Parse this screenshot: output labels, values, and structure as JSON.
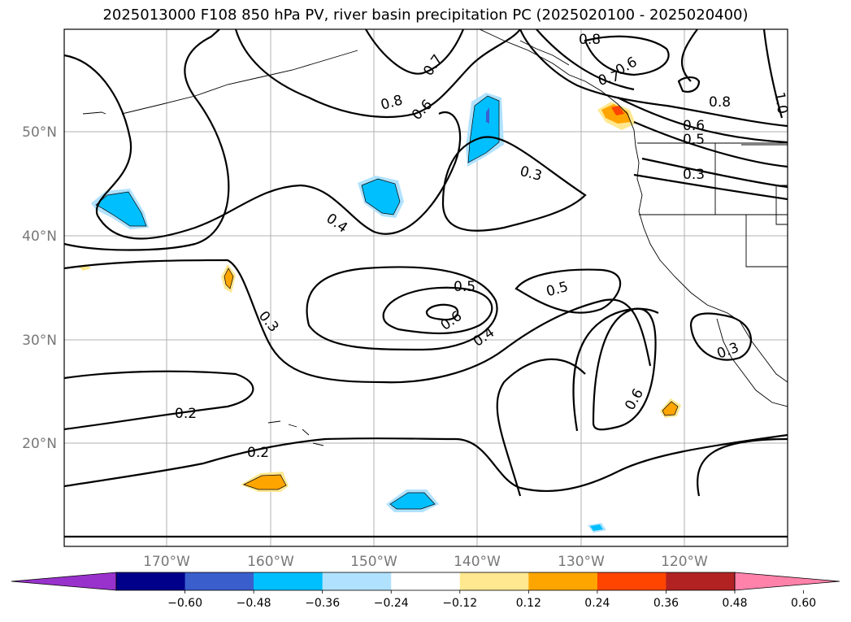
{
  "title": "2025013000 F108 850 hPa PV, river basin precipitation PC (2025020100 - 2025020400)",
  "lat_labels": [
    "50°N",
    "40°N",
    "30°N",
    "20°N"
  ],
  "lon_labels": [
    "170°W",
    "160°W",
    "150°W",
    "140°W",
    "130°W",
    "120°W"
  ],
  "contour_labels": [
    "0.8",
    "0.7",
    "0.6",
    "0.8",
    "0.7",
    "0.6",
    "0.8",
    "1.0",
    "0.6",
    "0.5",
    "0.3",
    "0.3",
    "0.4",
    "0.5",
    "0.5",
    "0.6",
    "0.4",
    "0.3",
    "0.6",
    "0.3",
    "0.2",
    "0.2"
  ],
  "colorbar": {
    "ticks": [
      "−0.60",
      "−0.48",
      "−0.36",
      "−0.24",
      "−0.12",
      "0.12",
      "0.24",
      "0.36",
      "0.48",
      "0.60"
    ],
    "colors": [
      "#9932cc",
      "#00008b",
      "#3a5fcd",
      "#00bfff",
      "#b0e2ff",
      "#ffffff",
      "#ffe88f",
      "#ffa500",
      "#ff4500",
      "#b22222",
      "#ff82ab"
    ]
  }
}
